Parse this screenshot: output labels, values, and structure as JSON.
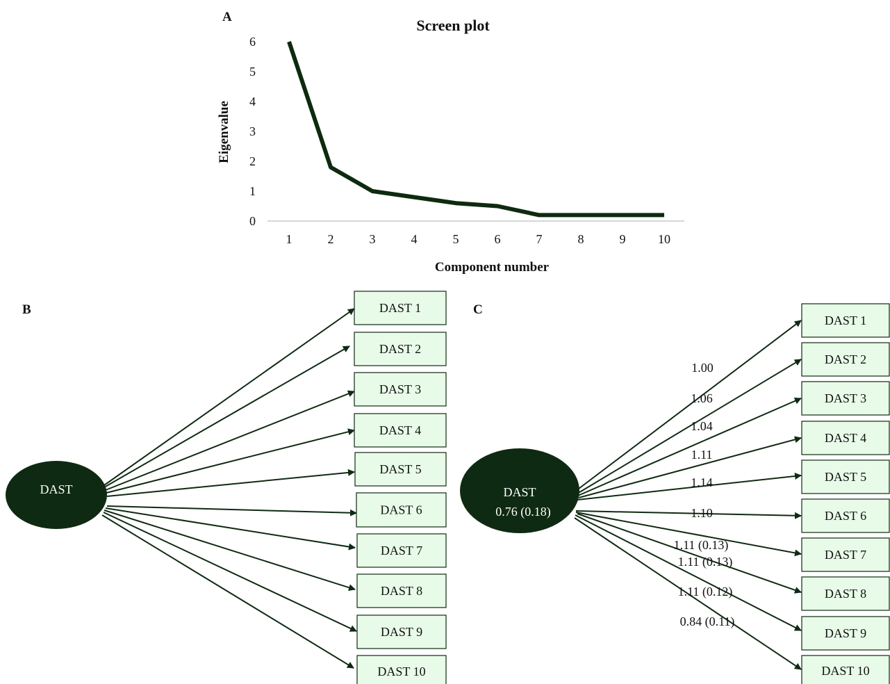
{
  "panels": {
    "a": "A",
    "b": "B",
    "c": "C"
  },
  "chart_data": {
    "type": "line",
    "title": "Screen plot",
    "xlabel": "Component number",
    "ylabel": "Eigenvalue",
    "x": [
      1,
      2,
      3,
      4,
      5,
      6,
      7,
      8,
      9,
      10
    ],
    "series": [
      {
        "values": [
          6.0,
          1.8,
          1.0,
          0.8,
          0.6,
          0.5,
          0.2,
          0.2,
          0.2,
          0.2
        ]
      }
    ],
    "xlim": [
      1,
      10
    ],
    "ylim": [
      0,
      6
    ],
    "yticks": [
      0,
      1,
      2,
      3,
      4,
      5,
      6
    ],
    "grid": false,
    "line_color": "#0e2a10"
  },
  "diagram_b": {
    "latent": "DAST",
    "indicators": [
      "DAST 1",
      "DAST 2",
      "DAST 3",
      "DAST 4",
      "DAST 5",
      "DAST 6",
      "DAST 7",
      "DAST 8",
      "DAST 9",
      "DAST 10"
    ]
  },
  "diagram_c": {
    "latent": "DAST",
    "latent_variance": "0.76 (0.18)",
    "indicators": [
      "DAST 1",
      "DAST 2",
      "DAST 3",
      "DAST 4",
      "DAST 5",
      "DAST 6",
      "DAST 7",
      "DAST 8",
      "DAST 9",
      "DAST 10"
    ],
    "loadings": [
      "1.00",
      "1.06",
      "1.04",
      "1.11",
      "1.14",
      "1.10",
      "1.11 (0.13)",
      "1.11 (0.13)",
      "1.11 (0.12)",
      "0.84 (0.11)"
    ]
  },
  "colors": {
    "node_fill": "#0f2a12",
    "box_fill": "#e8fbe8",
    "stroke": "#0f2a12"
  }
}
